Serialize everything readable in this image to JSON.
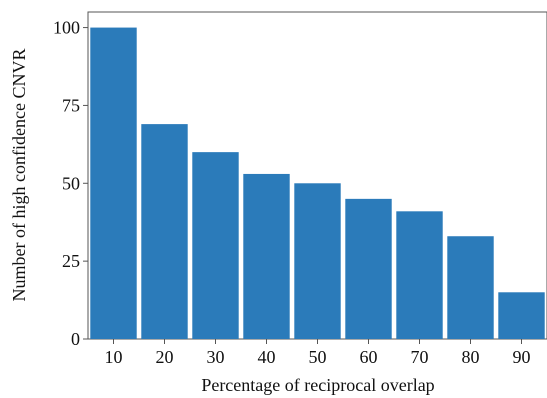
{
  "chart_data": {
    "type": "bar",
    "categories": [
      "10",
      "20",
      "30",
      "40",
      "50",
      "60",
      "70",
      "80",
      "90"
    ],
    "values": [
      100,
      69,
      60,
      53,
      50,
      45,
      41,
      33,
      15
    ],
    "xlabel": "Percentage of reciprocal overlap",
    "ylabel": "Number of high confidence CNVR",
    "ylim": [
      0,
      105
    ],
    "yticks": [
      0,
      25,
      50,
      75,
      100
    ],
    "grid": false,
    "legend": "none",
    "colors": {
      "bar": "#2b7bba",
      "axis": "#555555"
    }
  }
}
